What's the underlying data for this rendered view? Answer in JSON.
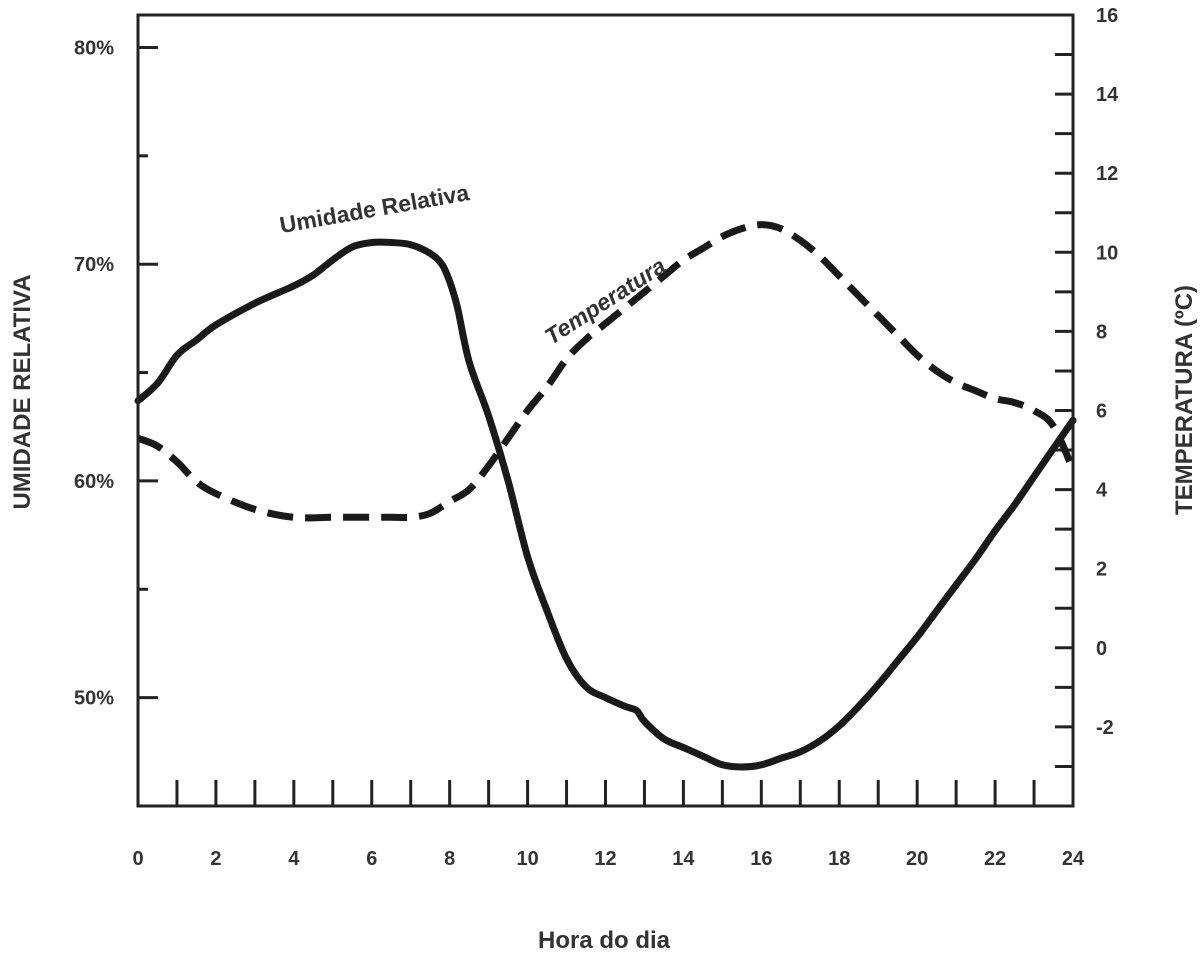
{
  "chart_data": {
    "type": "line",
    "xlabel": "Hora do dia",
    "ylabel_left": "UMIDADE RELATIVA",
    "ylabel_right": "TEMPERATURA (ºC)",
    "x_ticks": [
      "0",
      "2",
      "4",
      "6",
      "8",
      "10",
      "12",
      "14",
      "16",
      "18",
      "20",
      "22",
      "24"
    ],
    "x_range": [
      0,
      24
    ],
    "y_left_ticks": [
      {
        "value": 50,
        "label": "50%"
      },
      {
        "value": 60,
        "label": "60%"
      },
      {
        "value": 70,
        "label": "70%"
      },
      {
        "value": 80,
        "label": "80%"
      }
    ],
    "y_left_range": [
      45,
      81.5
    ],
    "y_right_ticks": [
      {
        "value": -2,
        "label": "-2"
      },
      {
        "value": 0,
        "label": "0"
      },
      {
        "value": 2,
        "label": "2"
      },
      {
        "value": 4,
        "label": "4"
      },
      {
        "value": 6,
        "label": "6"
      },
      {
        "value": 8,
        "label": "8"
      },
      {
        "value": 10,
        "label": "10"
      },
      {
        "value": 12,
        "label": "12"
      },
      {
        "value": 14,
        "label": "14"
      },
      {
        "value": 16,
        "label": "16"
      }
    ],
    "y_right_range": [
      -4,
      16
    ],
    "grid": false,
    "series": [
      {
        "name": "Umidade Relativa",
        "axis": "left",
        "style": "solid",
        "x": [
          0,
          0.5,
          1,
          1.5,
          2,
          3,
          4,
          4.5,
          5,
          5.5,
          6,
          6.5,
          7,
          7.5,
          7.8,
          8,
          8.2,
          8.5,
          9,
          9.5,
          10,
          10.5,
          11,
          11.5,
          12,
          12.5,
          12.8,
          13,
          13.5,
          14,
          14.5,
          15,
          15.5,
          16,
          16.5,
          17,
          17.5,
          18,
          18.5,
          19,
          19.5,
          20,
          20.5,
          21,
          21.5,
          22,
          22.5,
          23,
          23.5,
          24
        ],
        "values": [
          63.7,
          64.5,
          65.8,
          66.5,
          67.2,
          68.2,
          69.0,
          69.5,
          70.2,
          70.8,
          71.0,
          71.0,
          70.9,
          70.5,
          70.0,
          69.2,
          68.0,
          65.5,
          63.0,
          60.0,
          56.5,
          54.0,
          51.8,
          50.5,
          50.0,
          49.6,
          49.4,
          48.9,
          48.1,
          47.7,
          47.3,
          46.9,
          46.8,
          46.9,
          47.2,
          47.5,
          48.0,
          48.7,
          49.6,
          50.6,
          51.7,
          52.8,
          54.0,
          55.2,
          56.4,
          57.7,
          58.9,
          60.2,
          61.5,
          62.8
        ],
        "color": "#1a1a1a"
      },
      {
        "name": "Temperatura",
        "axis": "right",
        "style": "dashed",
        "x": [
          0,
          0.5,
          1,
          1.5,
          2,
          3,
          4,
          5,
          6,
          6.5,
          7,
          7.5,
          8,
          8.5,
          9,
          9.5,
          10,
          10.5,
          11,
          11.5,
          12,
          12.5,
          13,
          13.5,
          14,
          14.5,
          15,
          15.5,
          16,
          16.5,
          17,
          17.5,
          18,
          18.5,
          19,
          19.5,
          20,
          20.5,
          21,
          21.5,
          22,
          22.5,
          23,
          23.5,
          24
        ],
        "values": [
          5.3,
          5.1,
          4.7,
          4.2,
          3.9,
          3.5,
          3.3,
          3.3,
          3.3,
          3.3,
          3.3,
          3.4,
          3.7,
          4.0,
          4.6,
          5.3,
          6.0,
          6.6,
          7.3,
          7.8,
          8.2,
          8.6,
          9.0,
          9.4,
          9.8,
          10.1,
          10.4,
          10.6,
          10.7,
          10.6,
          10.3,
          9.9,
          9.4,
          8.9,
          8.4,
          7.9,
          7.4,
          7.0,
          6.7,
          6.5,
          6.3,
          6.2,
          6.0,
          5.6,
          4.5
        ],
        "color": "#1a1a1a"
      }
    ],
    "annotations": [
      {
        "text": "Umidade Relativa",
        "series": "Umidade Relativa"
      },
      {
        "text": "Temperatura",
        "series": "Temperatura"
      }
    ]
  }
}
